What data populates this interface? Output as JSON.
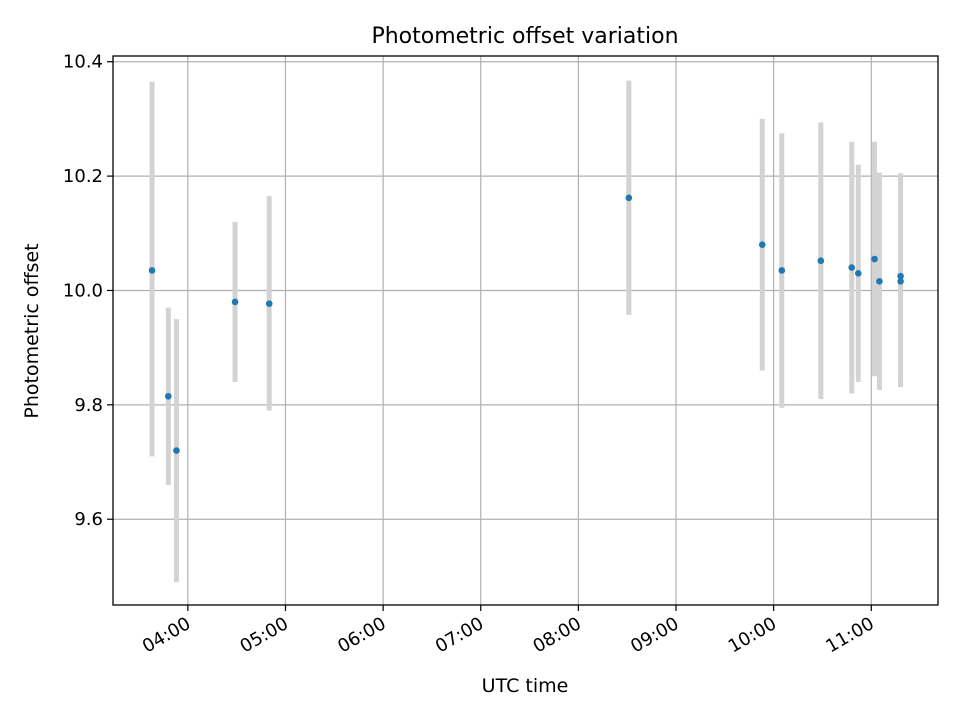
{
  "chart_data": {
    "type": "scatter",
    "title": "Photometric offset variation",
    "xlabel": "UTC time",
    "ylabel": "Photometric offset",
    "x_is_time": true,
    "xlim": [
      "03:14",
      "11:41"
    ],
    "ylim": [
      9.45,
      10.41
    ],
    "x_ticks": [
      "04:00",
      "05:00",
      "06:00",
      "07:00",
      "08:00",
      "09:00",
      "10:00",
      "11:00"
    ],
    "y_ticks": [
      9.6,
      9.8,
      10.0,
      10.2,
      10.4
    ],
    "y_tick_labels": [
      "9.6",
      "9.8",
      "10.0",
      "10.2",
      "10.4"
    ],
    "grid": true,
    "colors": {
      "point": "#1f77b4",
      "errorbar": "#d3d3d3",
      "grid": "#b0b0b0"
    },
    "points": [
      {
        "x": "03:38",
        "y": 10.035,
        "y_low": 9.71,
        "y_high": 10.365
      },
      {
        "x": "03:48",
        "y": 9.815,
        "y_low": 9.66,
        "y_high": 9.97
      },
      {
        "x": "03:53",
        "y": 9.72,
        "y_low": 9.49,
        "y_high": 9.95
      },
      {
        "x": "04:29",
        "y": 9.98,
        "y_low": 9.84,
        "y_high": 10.12
      },
      {
        "x": "04:50",
        "y": 9.977,
        "y_low": 9.79,
        "y_high": 10.165
      },
      {
        "x": "08:31",
        "y": 10.162,
        "y_low": 9.957,
        "y_high": 10.367
      },
      {
        "x": "09:53",
        "y": 10.08,
        "y_low": 9.86,
        "y_high": 10.3
      },
      {
        "x": "10:05",
        "y": 10.035,
        "y_low": 9.795,
        "y_high": 10.275
      },
      {
        "x": "10:29",
        "y": 10.052,
        "y_low": 9.81,
        "y_high": 10.294
      },
      {
        "x": "10:48",
        "y": 10.04,
        "y_low": 9.82,
        "y_high": 10.26
      },
      {
        "x": "10:52",
        "y": 10.03,
        "y_low": 9.84,
        "y_high": 10.22
      },
      {
        "x": "11:02",
        "y": 10.055,
        "y_low": 9.85,
        "y_high": 10.26
      },
      {
        "x": "11:05",
        "y": 10.016,
        "y_low": 9.826,
        "y_high": 10.206
      },
      {
        "x": "11:18",
        "y": 10.025,
        "y_low": 9.845,
        "y_high": 10.205
      },
      {
        "x": "11:18",
        "y": 10.016,
        "y_low": 9.831,
        "y_high": 10.201
      }
    ]
  }
}
